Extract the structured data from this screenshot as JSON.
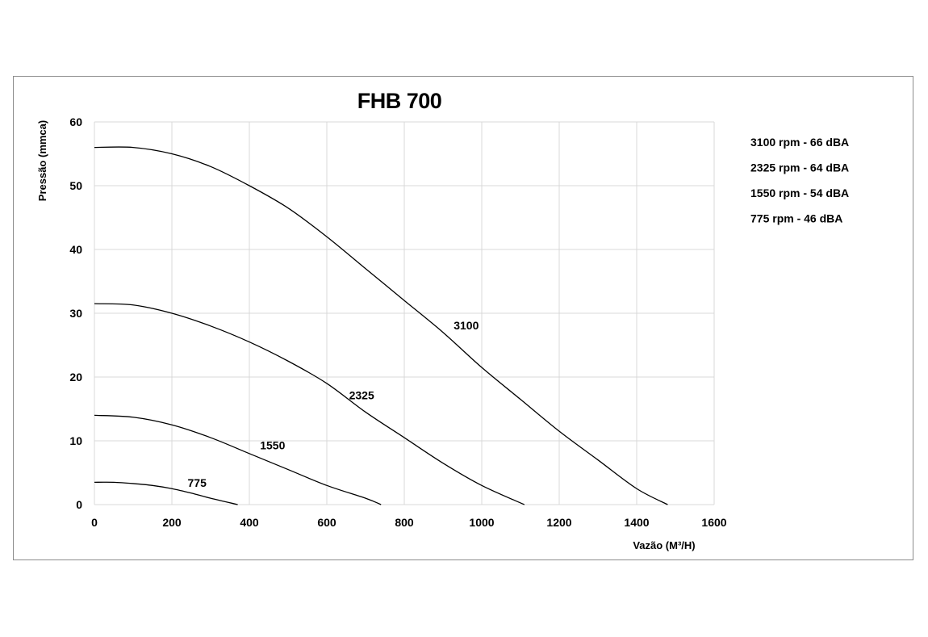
{
  "chart_data": {
    "type": "line",
    "title": "FHB 700",
    "xlabel": "Vazão (M³/H)",
    "ylabel": "Pressão (mmca)",
    "xlim": [
      0,
      1600
    ],
    "ylim": [
      0,
      60
    ],
    "xticks": [
      0,
      200,
      400,
      600,
      800,
      1000,
      1200,
      1400,
      1600
    ],
    "yticks": [
      0,
      10,
      20,
      30,
      40,
      50,
      60
    ],
    "grid": true,
    "legend_placement": "right",
    "legend": [
      "3100 rpm - 66 dBA",
      "2325 rpm - 64 dBA",
      "1550 rpm - 54 dBA",
      "775 rpm - 46 dBA"
    ],
    "series": [
      {
        "name": "3100",
        "x": [
          0,
          100,
          200,
          300,
          400,
          500,
          600,
          700,
          800,
          900,
          1000,
          1100,
          1200,
          1300,
          1400,
          1480
        ],
        "y": [
          56,
          56,
          55,
          53,
          50,
          46.5,
          42,
          37,
          32,
          27,
          21.5,
          16.5,
          11.5,
          7,
          2.5,
          0
        ]
      },
      {
        "name": "2325",
        "x": [
          0,
          100,
          200,
          300,
          400,
          500,
          600,
          700,
          800,
          900,
          1000,
          1110
        ],
        "y": [
          31.5,
          31.3,
          30,
          28,
          25.5,
          22.5,
          19,
          14.5,
          10.5,
          6.5,
          3,
          0
        ]
      },
      {
        "name": "1550",
        "x": [
          0,
          100,
          200,
          300,
          400,
          500,
          600,
          700,
          740
        ],
        "y": [
          14,
          13.7,
          12.5,
          10.5,
          8,
          5.5,
          3,
          1,
          0
        ]
      },
      {
        "name": "775",
        "x": [
          0,
          50,
          100,
          150,
          200,
          250,
          300,
          370
        ],
        "y": [
          3.5,
          3.5,
          3.3,
          3,
          2.5,
          1.8,
          1,
          0
        ]
      }
    ],
    "curve_labels": [
      {
        "series": "3100",
        "text": "3100",
        "x": 960,
        "y": 27.5
      },
      {
        "series": "2325",
        "text": "2325",
        "x": 690,
        "y": 16.5
      },
      {
        "series": "1550",
        "text": "1550",
        "x": 460,
        "y": 8.7
      },
      {
        "series": "775",
        "text": "775",
        "x": 265,
        "y": 2.8
      }
    ]
  }
}
